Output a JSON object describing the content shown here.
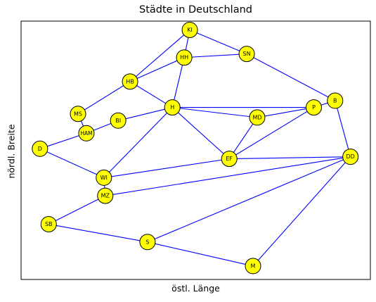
{
  "chart_data": {
    "type": "network",
    "title": "Städte in Deutschland",
    "xlabel": "östl. Länge",
    "ylabel": "nördl. Breite",
    "xlim": [
      0,
      100
    ],
    "ylim": [
      0,
      100
    ],
    "grid": false,
    "colors": {
      "node_fill": "#ffff00",
      "node_stroke": "#000000",
      "edge": "#0000ff"
    },
    "nodes": [
      {
        "id": "KI",
        "label": "KI",
        "x": 48.3,
        "y": 96.6
      },
      {
        "id": "HH",
        "label": "HH",
        "x": 46.7,
        "y": 85.9
      },
      {
        "id": "SN",
        "label": "SN",
        "x": 64.6,
        "y": 87.3
      },
      {
        "id": "HB",
        "label": "HB",
        "x": 31.2,
        "y": 76.6
      },
      {
        "id": "B",
        "label": "B",
        "x": 89.9,
        "y": 69.2
      },
      {
        "id": "H",
        "label": "H",
        "x": 43.3,
        "y": 66.6
      },
      {
        "id": "P",
        "label": "P",
        "x": 83.8,
        "y": 66.6
      },
      {
        "id": "MD",
        "label": "MD",
        "x": 67.6,
        "y": 62.7
      },
      {
        "id": "MS",
        "label": "MS",
        "x": 16.3,
        "y": 64.1
      },
      {
        "id": "BI",
        "label": "BI",
        "x": 27.8,
        "y": 61.5
      },
      {
        "id": "HAM",
        "label": "HAM",
        "x": 18.7,
        "y": 56.6
      },
      {
        "id": "D",
        "label": "D",
        "x": 5.4,
        "y": 50.6
      },
      {
        "id": "DD",
        "label": "DD",
        "x": 94.3,
        "y": 47.5
      },
      {
        "id": "EF",
        "label": "EF",
        "x": 59.6,
        "y": 46.7
      },
      {
        "id": "WI",
        "label": "WI",
        "x": 23.7,
        "y": 39.4
      },
      {
        "id": "MZ",
        "label": "MZ",
        "x": 24.1,
        "y": 32.4
      },
      {
        "id": "SB",
        "label": "SB",
        "x": 7.9,
        "y": 21.4
      },
      {
        "id": "S",
        "label": "S",
        "x": 36.2,
        "y": 14.5
      },
      {
        "id": "M",
        "label": "M",
        "x": 66.4,
        "y": 5.2
      }
    ],
    "edges": [
      [
        "KI",
        "HH"
      ],
      [
        "KI",
        "HB"
      ],
      [
        "KI",
        "SN"
      ],
      [
        "HH",
        "HB"
      ],
      [
        "HH",
        "SN"
      ],
      [
        "HH",
        "H"
      ],
      [
        "SN",
        "B"
      ],
      [
        "HB",
        "H"
      ],
      [
        "HB",
        "MS"
      ],
      [
        "MS",
        "HAM"
      ],
      [
        "HAM",
        "BI"
      ],
      [
        "HAM",
        "D"
      ],
      [
        "BI",
        "H"
      ],
      [
        "H",
        "P"
      ],
      [
        "H",
        "MD"
      ],
      [
        "H",
        "EF"
      ],
      [
        "H",
        "WI"
      ],
      [
        "P",
        "B"
      ],
      [
        "P",
        "MD"
      ],
      [
        "P",
        "EF"
      ],
      [
        "MD",
        "EF"
      ],
      [
        "B",
        "DD"
      ],
      [
        "EF",
        "DD"
      ],
      [
        "EF",
        "WI"
      ],
      [
        "D",
        "WI"
      ],
      [
        "WI",
        "MZ"
      ],
      [
        "MZ",
        "DD"
      ],
      [
        "MZ",
        "SB"
      ],
      [
        "SB",
        "S"
      ],
      [
        "S",
        "DD"
      ],
      [
        "S",
        "M"
      ],
      [
        "M",
        "DD"
      ]
    ]
  }
}
